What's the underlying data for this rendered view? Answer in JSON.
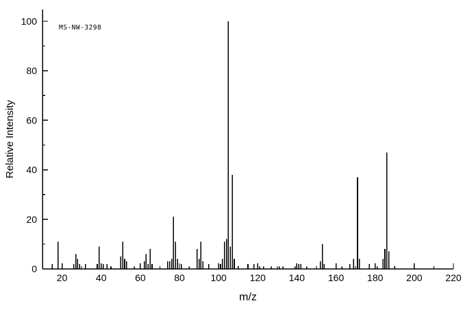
{
  "chart_data": {
    "type": "bar",
    "subtype": "mass-spectrum-stick-plot",
    "annotation": "MS-NW-3298",
    "xlabel": "m/z",
    "ylabel": "Relative Intensity",
    "xlim": [
      10,
      220
    ],
    "ylim": [
      0,
      100
    ],
    "x_major_ticks": [
      20,
      40,
      60,
      80,
      100,
      120,
      140,
      160,
      180,
      200,
      220
    ],
    "x_minor_tick_step": 10,
    "y_major_ticks": [
      0,
      20,
      40,
      60,
      80,
      100
    ],
    "y_minor_tick_step": 10,
    "grid": false,
    "legend": false,
    "line_color": "#000000",
    "background": "#ffffff",
    "peaks": [
      [
        15,
        2
      ],
      [
        18,
        11
      ],
      [
        26,
        2
      ],
      [
        27,
        6
      ],
      [
        28,
        4
      ],
      [
        29,
        2
      ],
      [
        32,
        2
      ],
      [
        38,
        2
      ],
      [
        39,
        9
      ],
      [
        41,
        2
      ],
      [
        43,
        2
      ],
      [
        45,
        1
      ],
      [
        50,
        5
      ],
      [
        51,
        11
      ],
      [
        52,
        4
      ],
      [
        53,
        3
      ],
      [
        57,
        1
      ],
      [
        62,
        3
      ],
      [
        63,
        6
      ],
      [
        64,
        2
      ],
      [
        65,
        8
      ],
      [
        66,
        2
      ],
      [
        74,
        3
      ],
      [
        75,
        3
      ],
      [
        76,
        4
      ],
      [
        77,
        21
      ],
      [
        78,
        11
      ],
      [
        79,
        4
      ],
      [
        81,
        2
      ],
      [
        85,
        1
      ],
      [
        89,
        8
      ],
      [
        90,
        4
      ],
      [
        91,
        11
      ],
      [
        92,
        3
      ],
      [
        95,
        2
      ],
      [
        101,
        2
      ],
      [
        102,
        4
      ],
      [
        103,
        11
      ],
      [
        104,
        12
      ],
      [
        105,
        100
      ],
      [
        106,
        9
      ],
      [
        107,
        38
      ],
      [
        108,
        4
      ],
      [
        115,
        2
      ],
      [
        118,
        2
      ],
      [
        121,
        1
      ],
      [
        123,
        1
      ],
      [
        127,
        1
      ],
      [
        131,
        1
      ],
      [
        133,
        1
      ],
      [
        139,
        1
      ],
      [
        141,
        2
      ],
      [
        142,
        2
      ],
      [
        145,
        1
      ],
      [
        152,
        3
      ],
      [
        153,
        10
      ],
      [
        154,
        2
      ],
      [
        160,
        1
      ],
      [
        163,
        1
      ],
      [
        167,
        2
      ],
      [
        169,
        4
      ],
      [
        171,
        37
      ],
      [
        172,
        4
      ],
      [
        177,
        2
      ],
      [
        181,
        1
      ],
      [
        184,
        4
      ],
      [
        185,
        8
      ],
      [
        186,
        47
      ],
      [
        187,
        7
      ]
    ]
  }
}
